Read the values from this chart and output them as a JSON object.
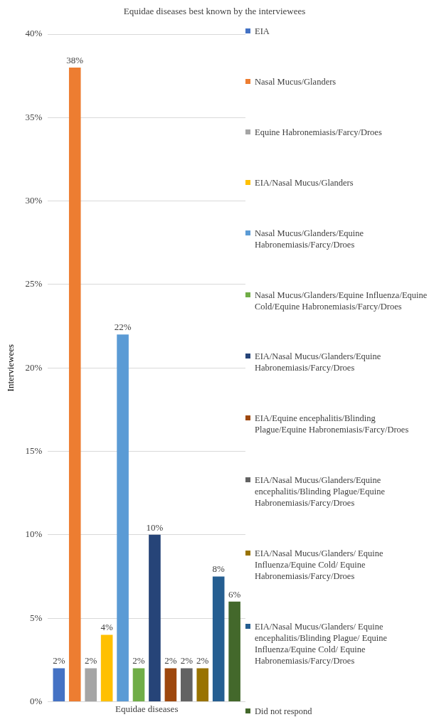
{
  "chart_data": {
    "type": "bar",
    "title": "Equidae diseases best known by the interviewees",
    "ylabel": "Interviewees",
    "categories": [
      "Equidae diseases"
    ],
    "series": [
      {
        "name": "EIA",
        "color": "#4472c4",
        "values": [
          2
        ],
        "value_labels": [
          "2%"
        ]
      },
      {
        "name": "Nasal Mucus/Glanders",
        "color": "#ed7d31",
        "values": [
          38
        ],
        "value_labels": [
          "38%"
        ]
      },
      {
        "name": "Equine Habronemiasis/Farcy/Droes",
        "color": "#a5a5a5",
        "values": [
          2
        ],
        "value_labels": [
          "2%"
        ]
      },
      {
        "name": "EIA/Nasal Mucus/Glanders",
        "color": "#ffc000",
        "values": [
          4
        ],
        "value_labels": [
          "4%"
        ]
      },
      {
        "name": "Nasal Mucus/Glanders/Equine Habronemiasis/Farcy/Droes",
        "color": "#5b9bd5",
        "values": [
          22
        ],
        "value_labels": [
          "22%"
        ]
      },
      {
        "name": "Nasal Mucus/Glanders/Equine Influenza/Equine Cold/Equine Habronemiasis/Farcy/Droes",
        "color": "#70ad47",
        "values": [
          2
        ],
        "value_labels": [
          "2%"
        ]
      },
      {
        "name": "EIA/Nasal Mucus/Glanders/Equine Habronemiasis/Farcy/Droes",
        "color": "#264478",
        "values": [
          10
        ],
        "value_labels": [
          "10%"
        ]
      },
      {
        "name": "EIA/Equine encephalitis/Blinding Plague/Equine Habronemiasis/Farcy/Droes",
        "color": "#9e480e",
        "values": [
          2
        ],
        "value_labels": [
          "2%"
        ]
      },
      {
        "name": "EIA/Nasal Mucus/Glanders/Equine encephalitis/Blinding Plague/Equine Habronemiasis/Farcy/Droes",
        "color": "#636363",
        "values": [
          2
        ],
        "value_labels": [
          "2%"
        ]
      },
      {
        "name": "EIA/Nasal Mucus/Glanders/ Equine Influenza/Equine Cold/ Equine Habronemiasis/Farcy/Droes",
        "color": "#997300",
        "values": [
          2
        ],
        "value_labels": [
          "2%"
        ]
      },
      {
        "name": "EIA/Nasal Mucus/Glanders/ Equine encephalitis/Blinding Plague/ Equine Influenza/Equine Cold/ Equine Habronemiasis/Farcy/Droes",
        "color": "#255e91",
        "values": [
          7.5
        ],
        "value_labels": [
          "8%"
        ]
      },
      {
        "name": "Did not respond",
        "color": "#43682b",
        "values": [
          6
        ],
        "value_labels": [
          "6%"
        ]
      }
    ],
    "ylim": [
      0,
      40
    ],
    "yticks": [
      {
        "value": 0,
        "label": "0%"
      },
      {
        "value": 5,
        "label": "5%"
      },
      {
        "value": 10,
        "label": "10%"
      },
      {
        "value": 15,
        "label": "15%"
      },
      {
        "value": 20,
        "label": "20%"
      },
      {
        "value": 25,
        "label": "25%"
      },
      {
        "value": 30,
        "label": "30%"
      },
      {
        "value": 35,
        "label": "35%"
      },
      {
        "value": 40,
        "label": "40%"
      }
    ],
    "grid": "y",
    "legend": "right"
  }
}
